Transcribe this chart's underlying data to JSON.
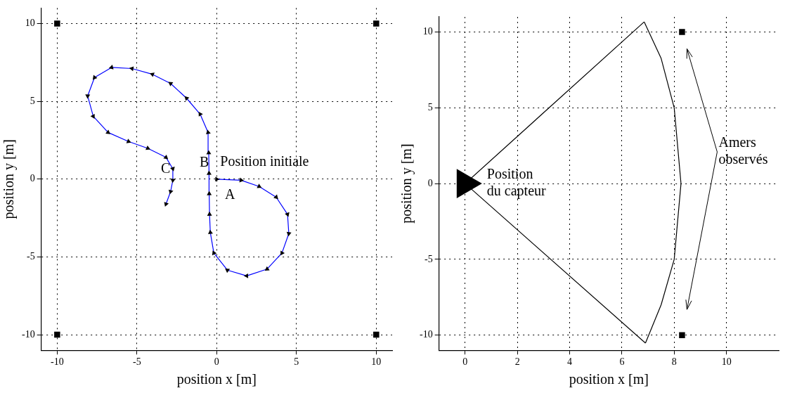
{
  "chart_data": [
    {
      "type": "line",
      "xlabel": "position x [m]",
      "ylabel": "position y [m]",
      "xlim": [
        -11,
        11
      ],
      "ylim": [
        -11,
        11
      ],
      "xticks": [
        -10,
        -5,
        0,
        5,
        10
      ],
      "yticks": [
        -10,
        -5,
        0,
        5,
        10
      ],
      "grid": true,
      "legend": false,
      "series": [
        {
          "type": "line",
          "color": "#0000ff",
          "marker": "triangle",
          "x": [
            0,
            1.53,
            2.66,
            3.73,
            4.44,
            4.52,
            4.09,
            3.16,
            1.88,
            0.67,
            -0.18,
            -0.4,
            -0.45,
            -0.47,
            -0.48,
            -0.5,
            -0.54,
            -1.04,
            -1.89,
            -2.89,
            -4.03,
            -5.31,
            -6.59,
            -7.66,
            -8.09,
            -7.74,
            -6.81,
            -5.53,
            -4.32,
            -3.18,
            -2.75,
            -2.75,
            -2.89,
            -3.18
          ],
          "values": [
            0,
            -0.07,
            -0.47,
            -1.16,
            -2.26,
            -3.5,
            -4.75,
            -5.78,
            -6.22,
            -5.85,
            -4.75,
            -3.43,
            -2.26,
            -0.94,
            0.37,
            1.69,
            3.0,
            4.18,
            5.2,
            6.15,
            6.74,
            7.11,
            7.18,
            6.53,
            5.35,
            4.04,
            3.0,
            2.42,
            1.98,
            1.4,
            0.67,
            -0.07,
            -0.8,
            -1.6
          ]
        },
        {
          "type": "scatter",
          "color": "#000000",
          "marker": "square",
          "x": [
            -10,
            10,
            -10,
            10
          ],
          "values": [
            10,
            10,
            -10,
            -10
          ]
        }
      ],
      "annotations": [
        {
          "text": "A",
          "x": 1.53,
          "y": -0.07
        },
        {
          "text": "B",
          "x": -0.5,
          "y": 1.69
        },
        {
          "text": "C",
          "x": -2.75,
          "y": 0.67
        },
        {
          "text": "Position initiale",
          "x": 0,
          "y": 0
        }
      ]
    },
    {
      "type": "line",
      "xlabel": "position x [m]",
      "ylabel": "position y [m]",
      "xlim": [
        -1,
        12
      ],
      "ylim": [
        -11,
        11
      ],
      "xticks": [
        0,
        2,
        4,
        6,
        8,
        10
      ],
      "yticks": [
        -10,
        -5,
        0,
        5,
        10
      ],
      "grid": true,
      "legend": false,
      "series": [
        {
          "type": "line",
          "color": "#000000",
          "marker": "none",
          "x": [
            6.85,
            0,
            6.9
          ],
          "values": [
            10.67,
            0,
            -10.53
          ]
        },
        {
          "type": "line",
          "color": "#000000",
          "marker": "none",
          "x": [
            6.85,
            7.5,
            8.0,
            8.26,
            8.0,
            7.5,
            6.9
          ],
          "values": [
            10.67,
            8.26,
            5,
            0,
            -5,
            -8,
            -10.53
          ]
        },
        {
          "type": "scatter",
          "color": "#000000",
          "marker": "square",
          "x": [
            8.3,
            8.3
          ],
          "values": [
            10,
            -10
          ]
        },
        {
          "type": "scatter",
          "color": "#000000",
          "marker": "triangle",
          "x": [
            0
          ],
          "values": [
            0
          ]
        }
      ],
      "annotations": [
        {
          "text": "Position du capteur",
          "x": 0,
          "y": 0
        },
        "Amers observés"
      ]
    }
  ]
}
